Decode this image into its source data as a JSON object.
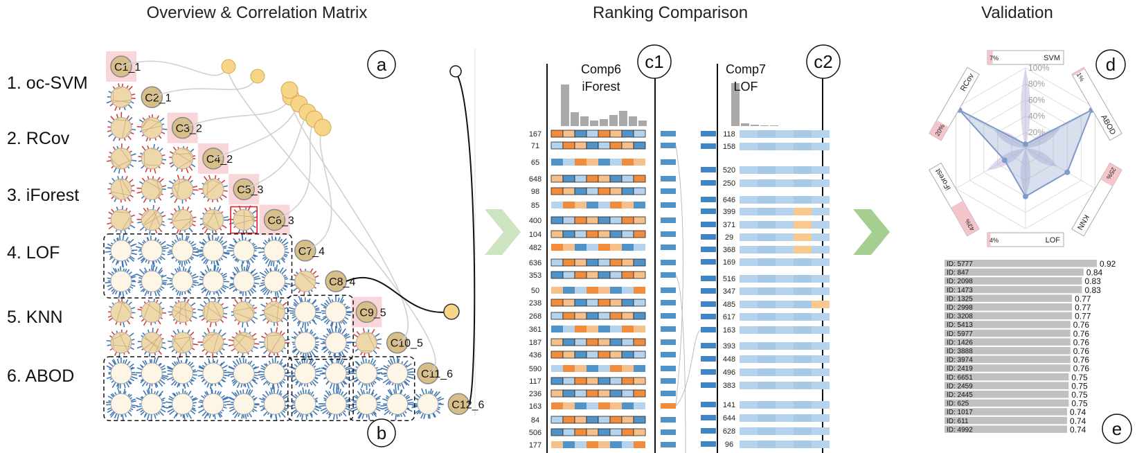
{
  "titles": {
    "overview": "Overview & Correlation Matrix",
    "ranking": "Ranking Comparison",
    "validation": "Validation"
  },
  "methods": [
    "1. oc-SVM",
    "2. RCov",
    "3. iForest",
    "4. LOF",
    "5. KNN",
    "6. ABOD"
  ],
  "components": [
    "C1_1",
    "C2_1",
    "C3_2",
    "C4_2",
    "C5_3",
    "C6_3",
    "C7_4",
    "C8_4",
    "C9_5",
    "C10_5",
    "C11_6",
    "C12_6"
  ],
  "markers": {
    "a": "a",
    "b": "b",
    "c1": "c1",
    "c2": "c2",
    "d": "d",
    "e": "e"
  },
  "comp_left": {
    "title1": "Comp6",
    "title2": "iForest"
  },
  "comp_right": {
    "title1": "Comp7",
    "title2": "LOF"
  },
  "left_ranks": [
    "167",
    "71",
    "65",
    "648",
    "98",
    "85",
    "400",
    "104",
    "482",
    "636",
    "353",
    "50",
    "238",
    "268",
    "361",
    "187",
    "436",
    "590",
    "117",
    "236",
    "163",
    "84",
    "506",
    "177"
  ],
  "right_ranks": [
    "118",
    "158",
    "520",
    "250",
    "646",
    "399",
    "371",
    "29",
    "368",
    "169",
    "516",
    "347",
    "485",
    "617",
    "163",
    "393",
    "448",
    "496",
    "383",
    "141",
    "644",
    "628",
    "96"
  ],
  "radar": {
    "axes": [
      {
        "name": "SVM",
        "pct": "7%"
      },
      {
        "name": "ABOD",
        "pct": "1%"
      },
      {
        "name": "KNN",
        "pct": "25%"
      },
      {
        "name": "LOF",
        "pct": "4%"
      },
      {
        "name": "iForest",
        "pct": "43%"
      },
      {
        "name": "RCov",
        "pct": "20%"
      }
    ],
    "ticks": [
      "100%",
      "80%",
      "60%",
      "40%",
      "20%"
    ]
  },
  "score_list": [
    {
      "id": "ID: 5777",
      "score": "0.92",
      "v": 0.92
    },
    {
      "id": "ID: 847",
      "score": "0.84",
      "v": 0.84
    },
    {
      "id": "ID: 2098",
      "score": "0.83",
      "v": 0.83
    },
    {
      "id": "ID: 1473",
      "score": "0.83",
      "v": 0.83
    },
    {
      "id": "ID: 1325",
      "score": "0.77",
      "v": 0.77
    },
    {
      "id": "ID: 2998",
      "score": "0.77",
      "v": 0.77
    },
    {
      "id": "ID: 3208",
      "score": "0.77",
      "v": 0.77
    },
    {
      "id": "ID: 5413",
      "score": "0.76",
      "v": 0.76
    },
    {
      "id": "ID: 5977",
      "score": "0.76",
      "v": 0.76
    },
    {
      "id": "ID: 1426",
      "score": "0.76",
      "v": 0.76
    },
    {
      "id": "ID: 3888",
      "score": "0.76",
      "v": 0.76
    },
    {
      "id": "ID: 3974",
      "score": "0.76",
      "v": 0.76
    },
    {
      "id": "ID: 2419",
      "score": "0.76",
      "v": 0.76
    },
    {
      "id": "ID: 6651",
      "score": "0.75",
      "v": 0.75
    },
    {
      "id": "ID: 2459",
      "score": "0.75",
      "v": 0.75
    },
    {
      "id": "ID: 2445",
      "score": "0.75",
      "v": 0.75
    },
    {
      "id": "ID: 625",
      "score": "0.75",
      "v": 0.75
    },
    {
      "id": "ID: 1017",
      "score": "0.74",
      "v": 0.74
    },
    {
      "id": "ID: 611",
      "score": "0.74",
      "v": 0.74
    },
    {
      "id": "ID: 4992",
      "score": "0.74",
      "v": 0.74
    }
  ],
  "colors": {
    "node_fill": "#d8bf8a",
    "node_stroke": "#888888",
    "highlight_bg": "#f9d6da",
    "cell_fill": "#fdf1d3",
    "blue_tick": "#3e76b4",
    "red_tick": "#d83a3a",
    "orange": "#f08c3c",
    "light_orange": "#f6c08c",
    "blue": "#4f93c9",
    "light_blue": "#b5d3ec",
    "arrow": "#b6d8a5",
    "bar_gray": "#c0c0c0",
    "radar_blue": "#8ea6cf",
    "radar_purple": "#b6aed6"
  }
}
